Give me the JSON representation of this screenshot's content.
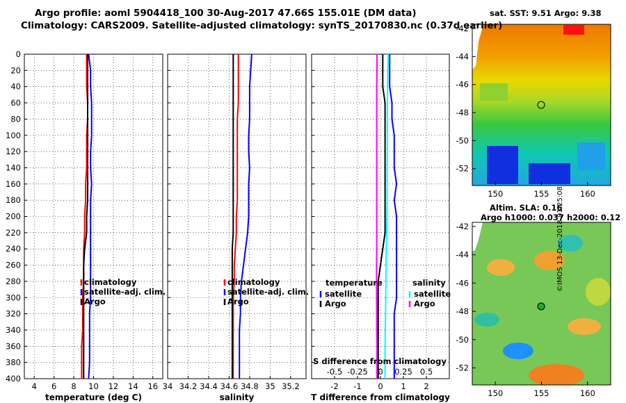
{
  "figure": {
    "title_line1": "Argo profile: aoml 5904418_100 30-Aug-2017 47.66S 155.01E (DM data)",
    "title_line2": "Climatology: CARS2009. Satellite-adjusted climatology: synTS_20170830.nc (0.37d earlier)",
    "timestamp": "©IMOS 13-Dec-2018 01:25:08"
  },
  "right_panels": {
    "sst_label": "sat. SST:",
    "sst_value": "9.51",
    "sst_argo_label": "Argo:",
    "sst_argo_value": "9.38",
    "sla_label": "Altim. SLA:",
    "sla_value": "0.16",
    "h_label1": "Argo h1000:",
    "h_value1": "0.037",
    "h_label2": "h2000:",
    "h_value2": "0.12",
    "lat_ticks": [
      "-42",
      "-44",
      "-46",
      "-48",
      "-50",
      "-52"
    ],
    "lon_ticks": [
      "150",
      "155",
      "160"
    ]
  },
  "colors": {
    "climatology": "#ff0000",
    "satellite": "#0000ff",
    "argo": "#000000",
    "s_satellite": "#00ffff",
    "s_argo": "#ff00ff"
  },
  "chart_data": [
    {
      "type": "line",
      "title": "",
      "xlabel": "temperature (deg C)",
      "ylabel": "",
      "xlim": [
        3,
        17
      ],
      "ylim": [
        400,
        0
      ],
      "xticks": [
        4,
        6,
        8,
        10,
        12,
        14,
        16
      ],
      "yticks": [
        0,
        20,
        40,
        60,
        80,
        100,
        120,
        140,
        160,
        180,
        200,
        220,
        240,
        260,
        280,
        300,
        320,
        340,
        360,
        380,
        400
      ],
      "legend": [
        "climatology",
        "satellite-adj. clim.",
        "Argo"
      ],
      "series": [
        {
          "name": "climatology",
          "color": "#ff0000",
          "x": [
            9.3,
            9.3,
            9.3,
            9.4,
            9.4,
            9.3,
            9.3,
            9.3,
            9.2,
            9.2,
            9.1,
            9.1,
            9.0,
            9.0,
            9.0,
            8.9,
            8.9,
            8.9,
            8.8,
            8.8,
            8.8
          ],
          "y": [
            0,
            20,
            40,
            60,
            80,
            100,
            120,
            140,
            160,
            180,
            200,
            220,
            240,
            260,
            280,
            300,
            320,
            340,
            360,
            380,
            400
          ]
        },
        {
          "name": "satellite-adj. clim.",
          "color": "#0000ff",
          "x": [
            9.5,
            9.7,
            9.7,
            9.8,
            9.8,
            9.8,
            9.7,
            9.7,
            9.8,
            9.7,
            9.7,
            9.7,
            9.7,
            9.7,
            9.7,
            9.7,
            9.6,
            9.6,
            9.6,
            9.6,
            9.5
          ],
          "y": [
            0,
            20,
            40,
            60,
            80,
            100,
            120,
            140,
            160,
            180,
            200,
            220,
            240,
            260,
            280,
            300,
            320,
            340,
            360,
            380,
            400
          ]
        },
        {
          "name": "Argo",
          "color": "#000000",
          "x": [
            9.4,
            9.4,
            9.4,
            9.4,
            9.4,
            9.4,
            9.4,
            9.4,
            9.4,
            9.4,
            9.3,
            9.3,
            9.1,
            9.0,
            9.0,
            9.0,
            9.0,
            9.0,
            9.0,
            9.0,
            9.0
          ],
          "y": [
            0,
            20,
            40,
            60,
            80,
            100,
            120,
            140,
            160,
            180,
            200,
            220,
            240,
            260,
            280,
            300,
            320,
            340,
            360,
            380,
            400
          ]
        }
      ]
    },
    {
      "type": "line",
      "title": "",
      "xlabel": "salinity",
      "ylabel": "",
      "xlim": [
        34.0,
        35.35
      ],
      "ylim": [
        400,
        0
      ],
      "xticks": [
        34,
        34.2,
        34.4,
        34.6,
        34.8,
        35,
        35.2
      ],
      "legend": [
        "climatology",
        "satellite-adj. clim.",
        "Argo"
      ],
      "series": [
        {
          "name": "climatology",
          "color": "#ff0000",
          "x": [
            34.69,
            34.69,
            34.69,
            34.69,
            34.68,
            34.68,
            34.68,
            34.68,
            34.68,
            34.68,
            34.67,
            34.67,
            34.66,
            34.65,
            34.65,
            34.64,
            34.64,
            34.64,
            34.64,
            34.64,
            34.64
          ],
          "y": [
            0,
            20,
            40,
            60,
            80,
            100,
            120,
            140,
            160,
            180,
            200,
            220,
            240,
            260,
            280,
            300,
            320,
            340,
            360,
            380,
            400
          ]
        },
        {
          "name": "satellite-adj. clim.",
          "color": "#0000ff",
          "x": [
            34.82,
            34.81,
            34.8,
            34.8,
            34.8,
            34.79,
            34.79,
            34.8,
            34.79,
            34.79,
            34.79,
            34.78,
            34.76,
            34.74,
            34.72,
            34.71,
            34.71,
            34.7,
            34.7,
            34.7,
            34.7
          ],
          "y": [
            0,
            20,
            40,
            60,
            80,
            100,
            120,
            140,
            160,
            180,
            200,
            220,
            240,
            260,
            280,
            300,
            320,
            340,
            360,
            380,
            400
          ]
        },
        {
          "name": "Argo",
          "color": "#000000",
          "x": [
            34.64,
            34.64,
            34.64,
            34.64,
            34.64,
            34.64,
            34.64,
            34.64,
            34.64,
            34.64,
            34.64,
            34.64,
            34.63,
            34.63,
            34.63,
            34.63,
            34.63,
            34.63,
            34.63,
            34.63,
            34.63
          ],
          "y": [
            0,
            20,
            40,
            60,
            80,
            100,
            120,
            140,
            160,
            180,
            200,
            220,
            240,
            260,
            280,
            300,
            320,
            340,
            360,
            380,
            400
          ]
        }
      ]
    },
    {
      "type": "line",
      "title": "",
      "xlabel": "T difference from climatology",
      "xlabel_top": "S difference from climatology",
      "ylabel": "",
      "xlim": [
        -3,
        3
      ],
      "ylim": [
        400,
        0
      ],
      "xticks": [
        -2,
        -1,
        0,
        1,
        2
      ],
      "xticks_top": [
        "-0.5",
        "-0.25",
        "0",
        "0.25",
        "0.5"
      ],
      "legend_temperature_title": "temperature",
      "legend_salinity_title": "salinity",
      "legend_temperature": [
        "satellite",
        "Argo"
      ],
      "legend_salinity": [
        "satellite",
        "Argo"
      ],
      "series": [
        {
          "name": "T satellite",
          "color": "#0000ff",
          "x": [
            0.4,
            0.4,
            0.4,
            0.5,
            0.5,
            0.6,
            0.6,
            0.6,
            0.7,
            0.6,
            0.7,
            0.7,
            0.7,
            0.7,
            0.7,
            0.7,
            0.6,
            0.6,
            0.6,
            0.6,
            0.6
          ],
          "y": [
            0,
            20,
            40,
            60,
            80,
            100,
            120,
            140,
            160,
            180,
            200,
            220,
            240,
            260,
            280,
            300,
            320,
            340,
            360,
            380,
            400
          ]
        },
        {
          "name": "T Argo",
          "color": "#000000",
          "x": [
            0.1,
            0.1,
            0.1,
            0.2,
            0.2,
            0.2,
            0.2,
            0.2,
            0.2,
            0.2,
            0.2,
            0.2,
            0.1,
            0.0,
            -0.1,
            -0.1,
            -0.1,
            -0.1,
            -0.1,
            -0.1,
            -0.1
          ],
          "y": [
            0,
            20,
            40,
            60,
            80,
            100,
            120,
            140,
            160,
            180,
            200,
            220,
            240,
            260,
            280,
            300,
            320,
            340,
            360,
            380,
            400
          ]
        },
        {
          "name": "S satellite",
          "color": "#00ffff",
          "x": [
            0.35,
            0.32,
            0.31,
            0.3,
            0.3,
            0.3,
            0.3,
            0.29,
            0.29,
            0.29,
            0.28,
            0.27,
            0.25,
            0.24,
            0.24,
            0.23,
            0.22,
            0.21,
            0.2,
            0.2,
            0.2
          ],
          "y": [
            0,
            20,
            40,
            60,
            80,
            100,
            120,
            140,
            160,
            180,
            200,
            220,
            240,
            260,
            280,
            300,
            320,
            340,
            360,
            380,
            400
          ]
        },
        {
          "name": "S Argo",
          "color": "#ff00ff",
          "x": [
            -0.15,
            -0.15,
            -0.16,
            -0.16,
            -0.16,
            -0.16,
            -0.16,
            -0.16,
            -0.16,
            -0.16,
            -0.16,
            -0.16,
            -0.16,
            -0.17,
            -0.17,
            -0.17,
            -0.16,
            -0.16,
            -0.15,
            -0.15,
            -0.15
          ],
          "y": [
            0,
            20,
            40,
            60,
            80,
            100,
            120,
            140,
            160,
            180,
            200,
            220,
            240,
            260,
            280,
            300,
            320,
            340,
            360,
            380,
            400
          ]
        }
      ]
    }
  ]
}
